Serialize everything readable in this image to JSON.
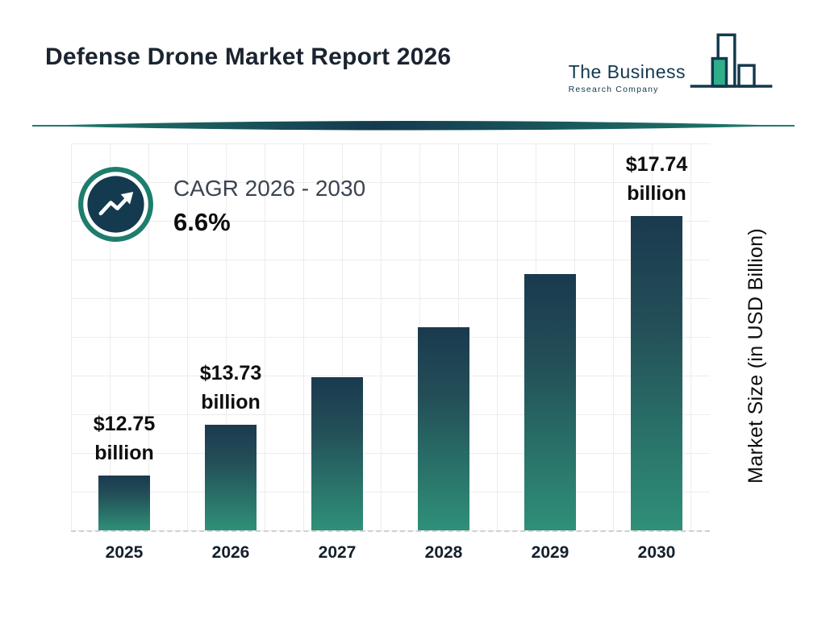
{
  "header": {
    "title": "Defense Drone Market Report 2026",
    "logo": {
      "line1": "The Business",
      "line2": "Research Company"
    }
  },
  "cagr": {
    "label": "CAGR 2026 - 2030",
    "value": "6.6%"
  },
  "chart_data": {
    "type": "bar",
    "title": "Defense Drone Market Report 2026",
    "categories": [
      "2025",
      "2026",
      "2027",
      "2028",
      "2029",
      "2030"
    ],
    "values": [
      12.75,
      13.73,
      14.64,
      15.6,
      16.63,
      17.74
    ],
    "bar_labels": [
      {
        "value": "$12.75",
        "unit": "billion"
      },
      {
        "value": "$13.73",
        "unit": "billion"
      },
      {
        "value": "",
        "unit": ""
      },
      {
        "value": "",
        "unit": ""
      },
      {
        "value": "",
        "unit": ""
      },
      {
        "value": "$17.74",
        "unit": "billion"
      }
    ],
    "xlabel": "",
    "ylabel": "Market Size (in USD Billion)",
    "baseline_value": 11.7,
    "grid": true,
    "colors": {
      "bar_top": "#1a3a4e",
      "bar_bottom": "#2f9078",
      "accent_teal": "#1e7d6d",
      "navy": "#143a4f"
    }
  }
}
